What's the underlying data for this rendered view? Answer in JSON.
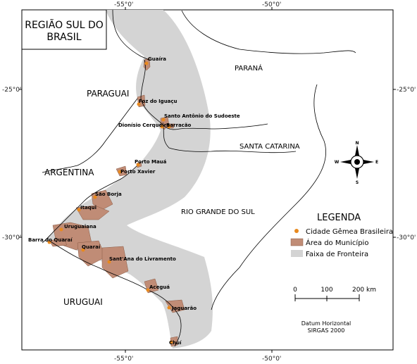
{
  "title": {
    "line1": "REGIÃO SUL DO",
    "line2": "BRASIL"
  },
  "graticule": {
    "lon_top": [
      "-55°0'",
      "-50°0'"
    ],
    "lon_bottom": [
      "-55°0'",
      "-50°0'"
    ],
    "lat_left": [
      "-25°0'",
      "-30°0'"
    ],
    "lat_right": [
      "-25°0'",
      "-30°0'"
    ]
  },
  "countries": {
    "paraguai": "PARAGUAI",
    "argentina": "ARGENTINA",
    "uruguai": "URUGUAI"
  },
  "states": {
    "parana": "PARANÁ",
    "santa_catarina": "SANTA CATARINA",
    "rio_grande_do_sul": "RIO GRANDE DO SUL"
  },
  "cities": [
    "Guaíra",
    "Foz do Iguaçu",
    "Santo Antônio do Sudoeste",
    "Dionísio Cerqueira",
    "Barracão",
    "Porto Mauá",
    "Porto Xavier",
    "São Borja",
    "Itaqui",
    "Uruguaiana",
    "Barra do Quaraí",
    "Quaraí",
    "Sant'Ana do Livramento",
    "Aceguá",
    "Jaguarão",
    "Chuí"
  ],
  "legend": {
    "title": "LEGENDA",
    "items": [
      {
        "label": "Cidade Gêmea Brasileira",
        "color": "#e8891e"
      },
      {
        "label": "Área do Município",
        "color": "#c08c76"
      },
      {
        "label": "Faixa de Fronteira",
        "color": "#d4d4d4"
      }
    ]
  },
  "scale": {
    "labels": [
      "0",
      "100",
      "200 km"
    ]
  },
  "datum": {
    "line1": "Datum Horizontal",
    "line2": "SIRGAS 2000"
  },
  "compass": {
    "n": "N",
    "s": "S",
    "e": "E",
    "w": "W"
  },
  "colors": {
    "strip": "#d4d4d4",
    "municipality": "#c08c76",
    "city": "#e8891e",
    "border": "#000000"
  }
}
